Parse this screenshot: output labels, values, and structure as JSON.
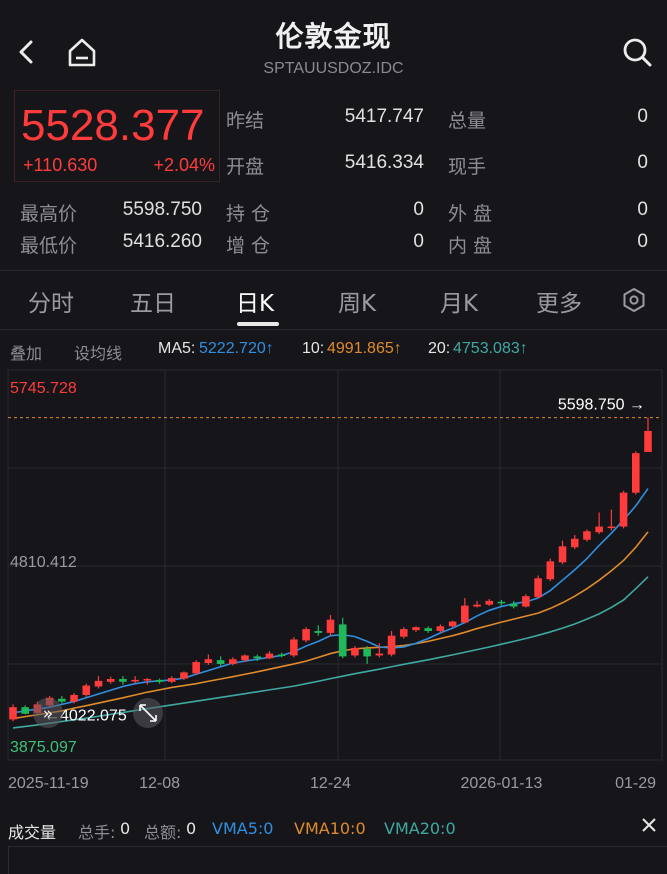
{
  "header": {
    "title": "伦敦金现",
    "subtitle": "SPTAUUSDOZ.IDC"
  },
  "quote": {
    "price": "5528.377",
    "change": "+110.630",
    "change_pct": "+2.04%",
    "prev_close_label": "昨结",
    "prev_close": "5417.747",
    "total_volume_label": "总量",
    "total_volume": "0",
    "open_label": "开盘",
    "open": "5416.334",
    "current_hand_label": "现手",
    "current_hand": "0",
    "high_label": "最高价",
    "high": "5598.750",
    "position_label": "持 仓",
    "position": "0",
    "outer_label": "外 盘",
    "outer": "0",
    "low_label": "最低价",
    "low": "5416.260",
    "add_position_label": "增 仓",
    "add_position": "0",
    "inner_label": "内 盘",
    "inner": "0"
  },
  "tabs": [
    "分时",
    "五日",
    "日K",
    "周K",
    "月K",
    "更多"
  ],
  "active_tab": "日K",
  "ma_row": {
    "overlay_label": "叠加",
    "set_ma_label": "设均线",
    "ma5_label": "MA5:",
    "ma5_value": "5222.720↑",
    "ma10_label": "10:",
    "ma10_value": "4991.865↑",
    "ma20_label": "20:",
    "ma20_value": "4753.083↑"
  },
  "colors": {
    "up": "#ff3b3b",
    "down": "#1fb85a",
    "ma5": "#2f8fe0",
    "ma10": "#e08a2c",
    "ma20": "#3fa8a0"
  },
  "chart_data": {
    "type": "candlestick",
    "y_top_label": "5745.728",
    "y_mid_label": "4810.412",
    "y_bottom_label": "3875.097",
    "ylim": [
      3875.097,
      5745.728
    ],
    "high_marker": "5598.750 →",
    "high_value": 5598.75,
    "low_marker": "←4022.075",
    "low_value": 4022.075,
    "x_tick_labels": [
      "2025-11-19",
      "12-08",
      "12-24",
      "2026-01-13",
      "01-29"
    ],
    "x_tick_index": [
      0,
      12,
      26,
      40,
      52
    ],
    "candles": [
      {
        "o": 3995,
        "c": 4060,
        "h": 4075,
        "l": 3985
      },
      {
        "o": 4060,
        "c": 4025,
        "h": 4070,
        "l": 4022
      },
      {
        "o": 4030,
        "c": 4075,
        "h": 4090,
        "l": 4025
      },
      {
        "o": 4070,
        "c": 4110,
        "h": 4120,
        "l": 4060
      },
      {
        "o": 4105,
        "c": 4090,
        "h": 4120,
        "l": 4080
      },
      {
        "o": 4090,
        "c": 4125,
        "h": 4135,
        "l": 4080
      },
      {
        "o": 4125,
        "c": 4175,
        "h": 4185,
        "l": 4115
      },
      {
        "o": 4170,
        "c": 4200,
        "h": 4225,
        "l": 4160
      },
      {
        "o": 4195,
        "c": 4210,
        "h": 4222,
        "l": 4185
      },
      {
        "o": 4210,
        "c": 4195,
        "h": 4225,
        "l": 4180
      },
      {
        "o": 4198,
        "c": 4205,
        "h": 4225,
        "l": 4188
      },
      {
        "o": 4202,
        "c": 4210,
        "h": 4215,
        "l": 4180
      },
      {
        "o": 4205,
        "c": 4195,
        "h": 4212,
        "l": 4185
      },
      {
        "o": 4195,
        "c": 4215,
        "h": 4225,
        "l": 4188
      },
      {
        "o": 4212,
        "c": 4245,
        "h": 4250,
        "l": 4205
      },
      {
        "o": 4240,
        "c": 4300,
        "h": 4310,
        "l": 4232
      },
      {
        "o": 4295,
        "c": 4315,
        "h": 4340,
        "l": 4285
      },
      {
        "o": 4310,
        "c": 4290,
        "h": 4330,
        "l": 4280
      },
      {
        "o": 4290,
        "c": 4315,
        "h": 4325,
        "l": 4282
      },
      {
        "o": 4310,
        "c": 4335,
        "h": 4340,
        "l": 4300
      },
      {
        "o": 4330,
        "c": 4320,
        "h": 4340,
        "l": 4305
      },
      {
        "o": 4320,
        "c": 4345,
        "h": 4358,
        "l": 4315
      },
      {
        "o": 4340,
        "c": 4335,
        "h": 4350,
        "l": 4325
      },
      {
        "o": 4335,
        "c": 4420,
        "h": 4432,
        "l": 4325
      },
      {
        "o": 4415,
        "c": 4475,
        "h": 4485,
        "l": 4405
      },
      {
        "o": 4465,
        "c": 4455,
        "h": 4495,
        "l": 4440
      },
      {
        "o": 4455,
        "c": 4525,
        "h": 4550,
        "l": 4440
      },
      {
        "o": 4500,
        "c": 4330,
        "h": 4535,
        "l": 4320
      },
      {
        "o": 4335,
        "c": 4375,
        "h": 4385,
        "l": 4325
      },
      {
        "o": 4370,
        "c": 4330,
        "h": 4385,
        "l": 4290
      },
      {
        "o": 4335,
        "c": 4345,
        "h": 4400,
        "l": 4325
      },
      {
        "o": 4340,
        "c": 4440,
        "h": 4465,
        "l": 4330
      },
      {
        "o": 4435,
        "c": 4475,
        "h": 4485,
        "l": 4425
      },
      {
        "o": 4470,
        "c": 4485,
        "h": 4490,
        "l": 4460
      },
      {
        "o": 4480,
        "c": 4465,
        "h": 4490,
        "l": 4455
      },
      {
        "o": 4465,
        "c": 4490,
        "h": 4500,
        "l": 4455
      },
      {
        "o": 4490,
        "c": 4515,
        "h": 4520,
        "l": 4485
      },
      {
        "o": 4510,
        "c": 4600,
        "h": 4640,
        "l": 4505
      },
      {
        "o": 4595,
        "c": 4605,
        "h": 4625,
        "l": 4590
      },
      {
        "o": 4605,
        "c": 4625,
        "h": 4635,
        "l": 4598
      },
      {
        "o": 4620,
        "c": 4615,
        "h": 4630,
        "l": 4600
      },
      {
        "o": 4610,
        "c": 4595,
        "h": 4625,
        "l": 4585
      },
      {
        "o": 4595,
        "c": 4650,
        "h": 4660,
        "l": 4590
      },
      {
        "o": 4645,
        "c": 4745,
        "h": 4760,
        "l": 4640
      },
      {
        "o": 4740,
        "c": 4835,
        "h": 4850,
        "l": 4730
      },
      {
        "o": 4830,
        "c": 4915,
        "h": 4945,
        "l": 4820
      },
      {
        "o": 4910,
        "c": 4955,
        "h": 4975,
        "l": 4900
      },
      {
        "o": 4950,
        "c": 4995,
        "h": 5005,
        "l": 4940
      },
      {
        "o": 4990,
        "c": 5020,
        "h": 5095,
        "l": 4980
      },
      {
        "o": 5015,
        "c": 5020,
        "h": 5110,
        "l": 5000
      },
      {
        "o": 5020,
        "c": 5200,
        "h": 5210,
        "l": 5010
      },
      {
        "o": 5200,
        "c": 5410,
        "h": 5420,
        "l": 5190
      },
      {
        "o": 5416,
        "c": 5528,
        "h": 5599,
        "l": 5416
      }
    ],
    "ma5": [
      4030,
      4040,
      4050,
      4060,
      4075,
      4090,
      4110,
      4130,
      4150,
      4170,
      4185,
      4195,
      4200,
      4205,
      4215,
      4235,
      4255,
      4275,
      4295,
      4305,
      4315,
      4325,
      4335,
      4355,
      4385,
      4410,
      4440,
      4445,
      4435,
      4410,
      4380,
      4375,
      4380,
      4400,
      4425,
      4455,
      4480,
      4510,
      4545,
      4575,
      4595,
      4610,
      4620,
      4640,
      4680,
      4735,
      4790,
      4850,
      4920,
      4985,
      5055,
      5130,
      5222
    ],
    "ma10": [
      4000,
      4010,
      4020,
      4030,
      4040,
      4055,
      4068,
      4082,
      4096,
      4110,
      4125,
      4140,
      4152,
      4165,
      4175,
      4185,
      4198,
      4210,
      4222,
      4235,
      4248,
      4262,
      4276,
      4290,
      4305,
      4325,
      4345,
      4360,
      4370,
      4375,
      4378,
      4382,
      4388,
      4398,
      4410,
      4425,
      4440,
      4458,
      4478,
      4495,
      4512,
      4528,
      4544,
      4560,
      4585,
      4615,
      4650,
      4690,
      4735,
      4785,
      4840,
      4910,
      4992
    ],
    "ma20": [
      3950,
      3958,
      3966,
      3975,
      3984,
      3993,
      4002,
      4012,
      4022,
      4032,
      4042,
      4052,
      4062,
      4072,
      4082,
      4092,
      4102,
      4112,
      4122,
      4132,
      4142,
      4152,
      4162,
      4172,
      4185,
      4198,
      4212,
      4225,
      4238,
      4250,
      4262,
      4275,
      4288,
      4300,
      4312,
      4325,
      4338,
      4352,
      4366,
      4380,
      4395,
      4410,
      4425,
      4442,
      4460,
      4480,
      4502,
      4528,
      4556,
      4590,
      4630,
      4690,
      4753
    ]
  },
  "volume_row": {
    "title": "成交量",
    "total_hand_label": "总手:",
    "total_hand_value": "0",
    "total_amount_label": "总额:",
    "total_amount_value": "0",
    "vma5": "VMA5:0",
    "vma10": "VMA10:0",
    "vma20": "VMA20:0"
  }
}
